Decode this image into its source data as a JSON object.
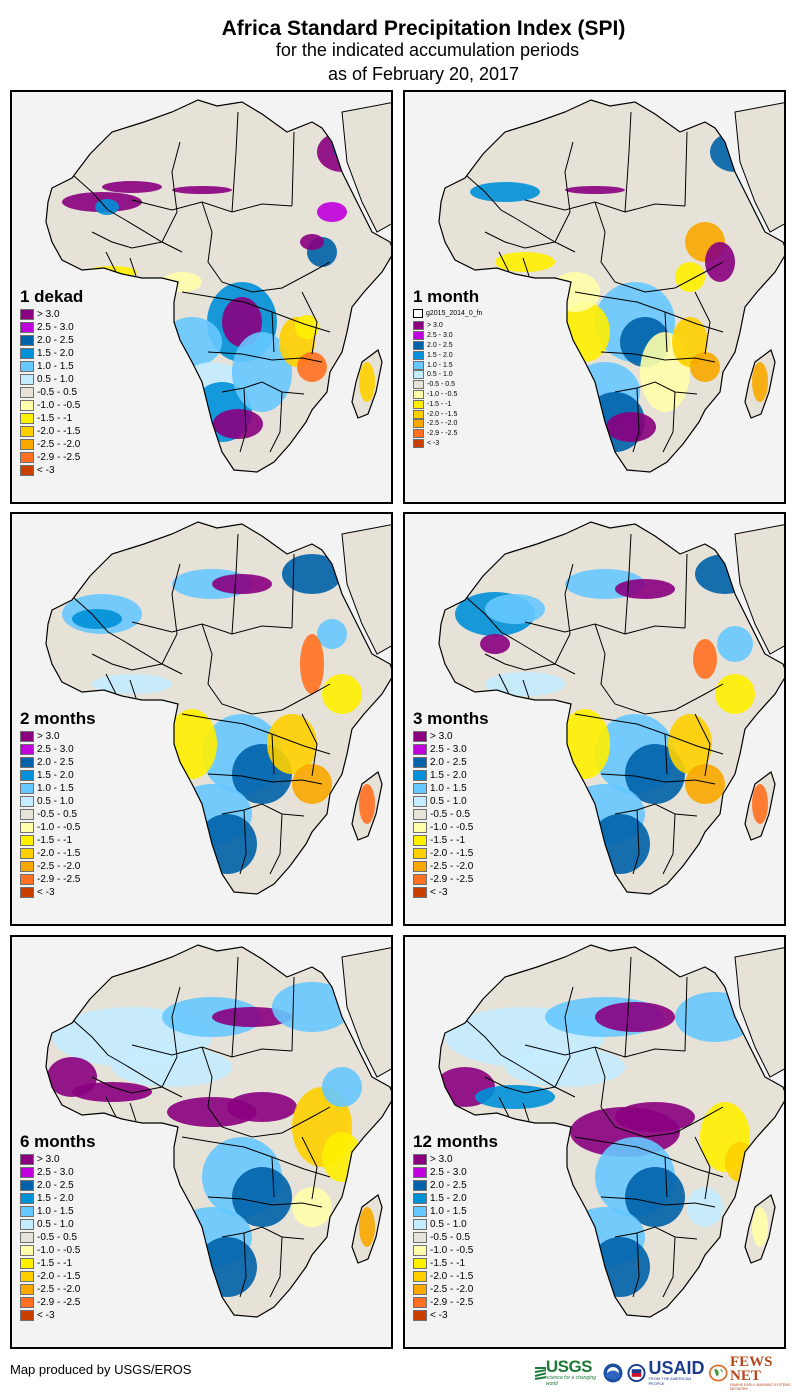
{
  "header": {
    "title": "Africa Standard Precipitation Index (SPI)",
    "subtitle": "for the indicated accumulation periods",
    "date": "as of February 20, 2017"
  },
  "legend_classes": [
    {
      "label": "> 3.0",
      "color": "#8a0080"
    },
    {
      "label": "2.5 - 3.0",
      "color": "#c000dc"
    },
    {
      "label": "2.0 - 2.5",
      "color": "#0062a8"
    },
    {
      "label": "1.5 - 2.0",
      "color": "#0090d8"
    },
    {
      "label": "1.0 - 1.5",
      "color": "#66c8ff"
    },
    {
      "label": "0.5 - 1.0",
      "color": "#c4ecff"
    },
    {
      "label": "-0.5 - 0.5",
      "color": "#e6e2d8"
    },
    {
      "label": "-1.0 - -0.5",
      "color": "#ffffaa"
    },
    {
      "label": "-1.5 - -1",
      "color": "#fff000"
    },
    {
      "label": "-2.0 - -1.5",
      "color": "#ffd000"
    },
    {
      "label": "-2.5 - -2.0",
      "color": "#f8a800"
    },
    {
      "label": "-2.9 - -2.5",
      "color": "#ff7020"
    },
    {
      "label": "< -3",
      "color": "#c84000"
    }
  ],
  "colors": {
    "ocean": "#f3f3f3",
    "land_neutral": "#e6e2d8",
    "border": "#000000"
  },
  "panels": [
    {
      "id": "1-dekad",
      "title": "1 dekad"
    },
    {
      "id": "1-month",
      "title": "1 month",
      "extra_layer_label": "g2015_2014_0_fn"
    },
    {
      "id": "2-months",
      "title": "2 months"
    },
    {
      "id": "3-months",
      "title": "3 months"
    },
    {
      "id": "6-months",
      "title": "6 months"
    },
    {
      "id": "12-months",
      "title": "12 months"
    }
  ],
  "footer": {
    "credit": "Map produced by USGS/EROS",
    "logos": [
      {
        "name": "USGS",
        "text": "USGS",
        "tagline": "science for a changing world"
      },
      {
        "name": "NOAA",
        "text": ""
      },
      {
        "name": "USAID",
        "text": "USAID",
        "tagline": "FROM THE AMERICAN PEOPLE"
      },
      {
        "name": "FEWS NET",
        "text": "FEWS NET",
        "tagline": "FAMINE EARLY WARNING SYSTEMS NETWORK"
      }
    ]
  }
}
